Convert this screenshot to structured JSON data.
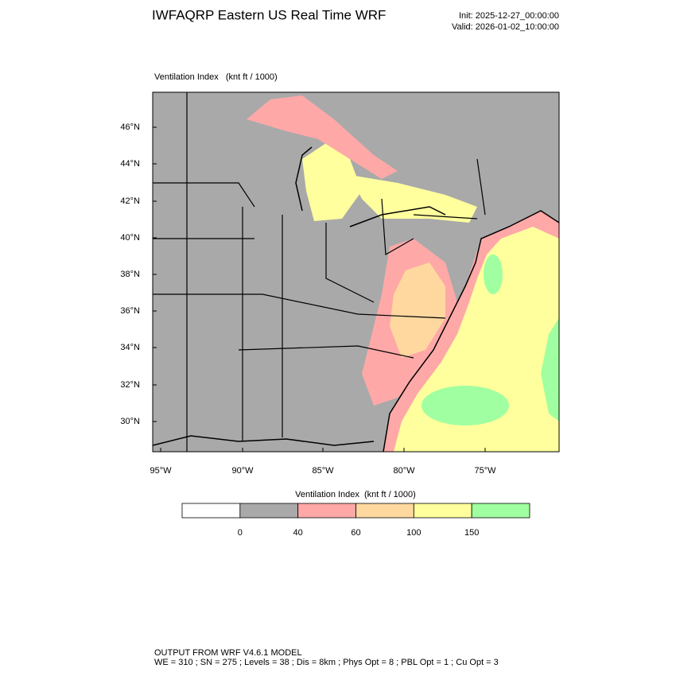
{
  "header": {
    "title": "IWFAQRP Eastern US Real Time WRF",
    "init": "Init: 2025-12-27_00:00:00",
    "valid": "Valid: 2026-01-02_10:00:00"
  },
  "map": {
    "label": "Ventilation Index   (knt ft / 1000)",
    "lat_labels": [
      "46°N",
      "44°N",
      "42°N",
      "40°N",
      "38°N",
      "36°N",
      "34°N",
      "32°N",
      "30°N"
    ],
    "lon_labels": [
      "95°W",
      "90°W",
      "85°W",
      "80°W",
      "75°W"
    ]
  },
  "colorbar": {
    "title": "Ventilation Index  (knt ft / 1000)",
    "colors": [
      "#ffffff",
      "#a9a9a9",
      "#ffa8a8",
      "#ffd8a0",
      "#ffff9e",
      "#a0ffa0"
    ],
    "labels": [
      "0",
      "40",
      "60",
      "100",
      "150"
    ]
  },
  "footer": {
    "line1": "OUTPUT FROM WRF V4.6.1 MODEL",
    "line2": "WE = 310 ; SN = 275 ; Levels = 38 ; Dis = 8km ; Phys Opt = 8 ; PBL Opt = 1 ; Cu Opt = 3"
  }
}
